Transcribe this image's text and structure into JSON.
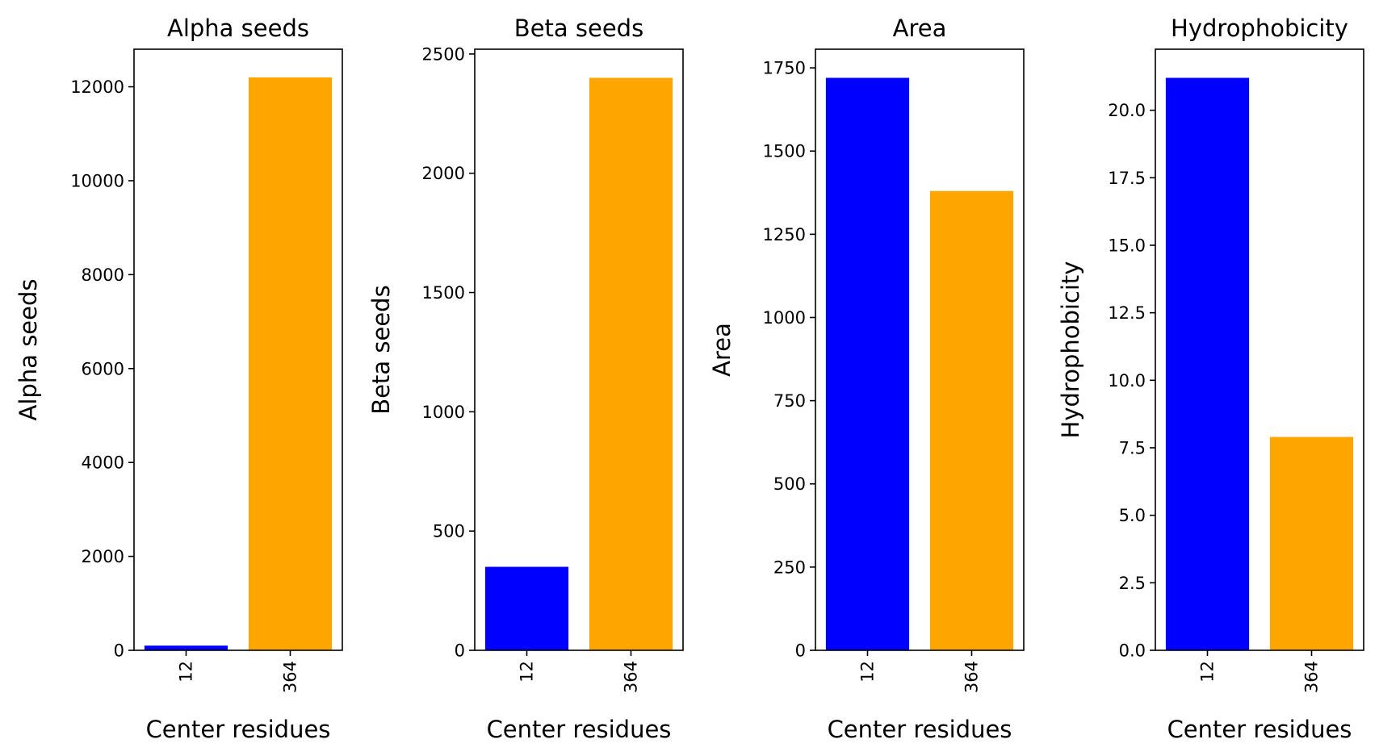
{
  "chart_data": [
    {
      "type": "bar",
      "title": "Alpha seeds",
      "xlabel": "Center residues",
      "ylabel": "Alpha seeds",
      "categories": [
        "12",
        "364"
      ],
      "values": [
        100,
        12200
      ],
      "colors": [
        "#0000ff",
        "#ffa500"
      ],
      "ylim": [
        0,
        12800
      ],
      "yticks": [
        0,
        2000,
        4000,
        6000,
        8000,
        10000,
        12000
      ],
      "ytick_labels": [
        "0",
        "2000",
        "4000",
        "6000",
        "8000",
        "10000",
        "12000"
      ],
      "grid": false
    },
    {
      "type": "bar",
      "title": "Beta seeds",
      "xlabel": "Center residues",
      "ylabel": "Beta seeds",
      "categories": [
        "12",
        "364"
      ],
      "values": [
        350,
        2400
      ],
      "colors": [
        "#0000ff",
        "#ffa500"
      ],
      "ylim": [
        0,
        2520
      ],
      "yticks": [
        0,
        500,
        1000,
        1500,
        2000,
        2500
      ],
      "ytick_labels": [
        "0",
        "500",
        "1000",
        "1500",
        "2000",
        "2500"
      ],
      "grid": false
    },
    {
      "type": "bar",
      "title": "Area",
      "xlabel": "Center residues",
      "ylabel": "Area",
      "categories": [
        "12",
        "364"
      ],
      "values": [
        1720,
        1380
      ],
      "colors": [
        "#0000ff",
        "#ffa500"
      ],
      "ylim": [
        0,
        1806
      ],
      "yticks": [
        0,
        250,
        500,
        750,
        1000,
        1250,
        1500,
        1750
      ],
      "ytick_labels": [
        "0",
        "250",
        "500",
        "750",
        "1000",
        "1250",
        "1500",
        "1750"
      ],
      "grid": false
    },
    {
      "type": "bar",
      "title": "Hydrophobicity",
      "xlabel": "Center residues",
      "ylabel": "Hydrophobicity",
      "categories": [
        "12",
        "364"
      ],
      "values": [
        21.2,
        7.9
      ],
      "colors": [
        "#0000ff",
        "#ffa500"
      ],
      "ylim": [
        0,
        22.26
      ],
      "yticks": [
        0,
        2.5,
        5,
        7.5,
        10,
        12.5,
        15,
        17.5,
        20
      ],
      "ytick_labels": [
        "0.0",
        "2.5",
        "5.0",
        "7.5",
        "10.0",
        "12.5",
        "15.0",
        "17.5",
        "20.0"
      ],
      "grid": false
    }
  ]
}
